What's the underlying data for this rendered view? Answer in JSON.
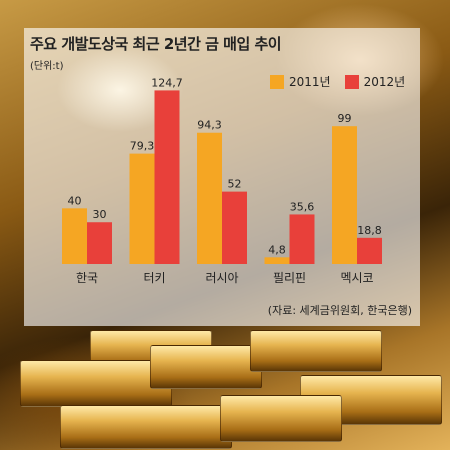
{
  "title": "주요 개발도상국 최근 2년간 금 매입 추이",
  "unit": "(단위:t)",
  "source": "(자료: 세계금위원회, 한국은행)",
  "colors": {
    "2011": "#f5a623",
    "2012": "#e8403a"
  },
  "chart_data": {
    "type": "bar",
    "categories": [
      "한국",
      "터키",
      "러시아",
      "필리핀",
      "멕시코"
    ],
    "series": [
      {
        "name": "2011년",
        "values": [
          40,
          79.3,
          94.3,
          4.8,
          99
        ],
        "labels": [
          "40",
          "79,3",
          "94,3",
          "4,8",
          "99"
        ]
      },
      {
        "name": "2012년",
        "values": [
          30,
          124.7,
          52,
          35.6,
          18.8
        ],
        "labels": [
          "30",
          "124,7",
          "52",
          "35,6",
          "18,8"
        ]
      }
    ],
    "ylim": [
      0,
      125
    ],
    "legend": "top-right",
    "grid": false
  }
}
